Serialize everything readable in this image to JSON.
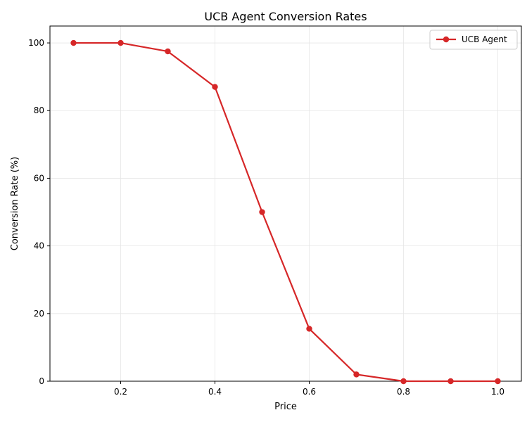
{
  "chart_data": {
    "type": "line",
    "title": "UCB Agent Conversion Rates",
    "xlabel": "Price",
    "ylabel": "Conversion Rate (%)",
    "xlim": [
      0.05,
      1.05
    ],
    "ylim": [
      0,
      105
    ],
    "xticks": [
      0.2,
      0.4,
      0.6,
      0.8,
      1.0
    ],
    "xtick_labels": [
      "0.2",
      "0.4",
      "0.6",
      "0.8",
      "1.0"
    ],
    "yticks": [
      0,
      20,
      40,
      60,
      80,
      100
    ],
    "ytick_labels": [
      "0",
      "20",
      "40",
      "60",
      "80",
      "100"
    ],
    "grid": true,
    "legend_position": "top-right",
    "series": [
      {
        "name": "UCB Agent",
        "color": "#d62728",
        "marker": "circle",
        "x": [
          0.1,
          0.2,
          0.3,
          0.4,
          0.5,
          0.6,
          0.7,
          0.8,
          0.9,
          1.0
        ],
        "y": [
          100,
          100,
          97.5,
          87,
          50,
          15.5,
          2,
          0,
          0,
          0
        ]
      }
    ]
  }
}
